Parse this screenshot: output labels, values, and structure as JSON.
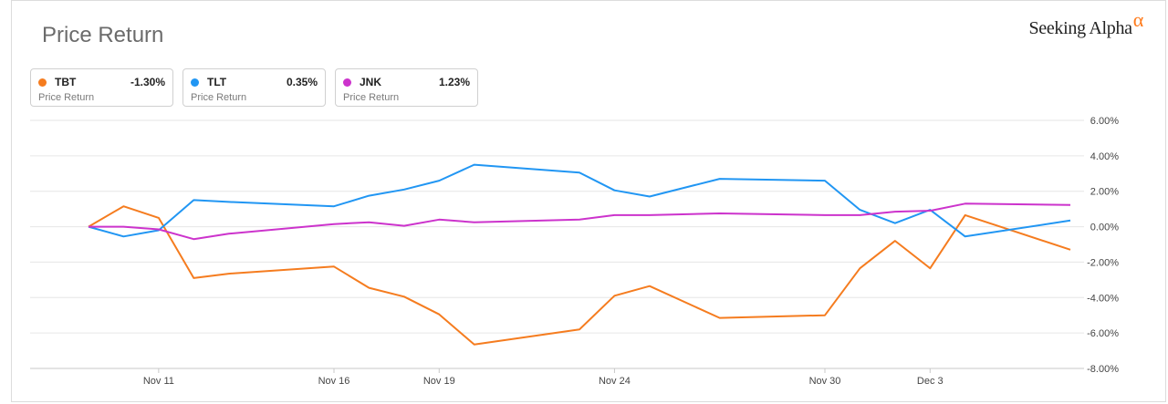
{
  "header": {
    "title": "Price Return",
    "logo_text": "Seeking Alpha",
    "logo_symbol": "α"
  },
  "legend": [
    {
      "ticker": "TBT",
      "value": "-1.30%",
      "sub": "Price Return",
      "color": "#f57c1f"
    },
    {
      "ticker": "TLT",
      "value": "0.35%",
      "sub": "Price Return",
      "color": "#2196f3"
    },
    {
      "ticker": "JNK",
      "value": "1.23%",
      "sub": "Price Return",
      "color": "#cc33cc"
    }
  ],
  "chart_data": {
    "type": "line",
    "ylim": [
      -8,
      6
    ],
    "y_ticks": [
      6,
      4,
      2,
      0,
      -2,
      -4,
      -6,
      -8
    ],
    "y_tick_labels": [
      "6.00%",
      "4.00%",
      "2.00%",
      "0.00%",
      "-2.00%",
      "-4.00%",
      "-6.00%",
      "-8.00%"
    ],
    "x_tick_labels": [
      "Nov 11",
      "Nov 16",
      "Nov 19",
      "Nov 24",
      "Nov 30",
      "Dec 3"
    ],
    "x_tick_index": [
      2,
      7,
      10,
      15,
      21,
      24
    ],
    "x": [
      "Nov 9",
      "Nov 10",
      "Nov 11",
      "Nov 12",
      "Nov 13",
      "Nov 16",
      "Nov 17",
      "Nov 18",
      "Nov 19",
      "Nov 20",
      "Nov 23",
      "Nov 24",
      "Nov 25",
      "Nov 27",
      "Nov 30",
      "Dec 1",
      "Dec 2",
      "Dec 3",
      "Dec 4",
      "Dec 7"
    ],
    "x_pos": [
      0,
      1,
      2,
      3,
      4,
      7,
      8,
      9,
      10,
      11,
      14,
      15,
      16,
      18,
      21,
      22,
      23,
      24,
      25,
      28
    ],
    "series": [
      {
        "name": "TBT",
        "color": "#f57c1f",
        "values": [
          0.0,
          1.15,
          0.5,
          -2.9,
          -2.65,
          -2.25,
          -3.45,
          -3.95,
          -4.95,
          -6.65,
          -5.8,
          -3.9,
          -3.35,
          -5.15,
          -5.0,
          -2.35,
          -0.8,
          -2.35,
          0.65,
          -1.3
        ]
      },
      {
        "name": "TLT",
        "color": "#2196f3",
        "values": [
          0.0,
          -0.55,
          -0.2,
          1.5,
          1.4,
          1.15,
          1.75,
          2.1,
          2.6,
          3.5,
          3.05,
          2.05,
          1.7,
          2.7,
          2.6,
          0.95,
          0.2,
          0.95,
          -0.55,
          0.35
        ]
      },
      {
        "name": "JNK",
        "color": "#cc33cc",
        "values": [
          0.0,
          0.0,
          -0.15,
          -0.7,
          -0.4,
          0.15,
          0.25,
          0.05,
          0.4,
          0.25,
          0.4,
          0.65,
          0.65,
          0.75,
          0.65,
          0.65,
          0.85,
          0.9,
          1.3,
          1.23
        ]
      }
    ]
  }
}
